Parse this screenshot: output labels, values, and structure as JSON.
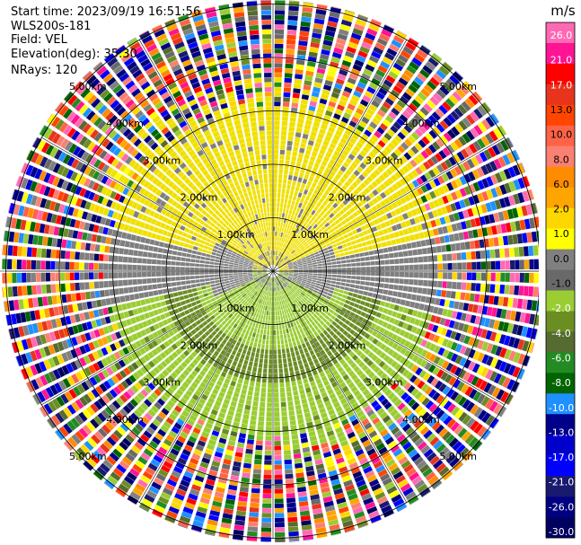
{
  "header": {
    "start_time": "Start time: 2023/09/19 16:51:56",
    "instrument": "WLS200s-181",
    "field": "Field: VEL",
    "elevation": "Elevation(deg): 35.30",
    "nrays": "NRays: 120"
  },
  "colorbar": {
    "unit": "m/s",
    "ticks": [
      "26.0",
      "21.0",
      "17.0",
      "13.0",
      "10.0",
      "8.0",
      "6.0",
      "2.0",
      "1.0",
      "0.0",
      "-1.0",
      "-2.0",
      "-4.0",
      "-6.0",
      "-8.0",
      "-10.0",
      "-13.0",
      "-17.0",
      "-21.0",
      "-26.0",
      "-30.0"
    ],
    "colors": [
      "#ff69b4",
      "#ff1493",
      "#ff0000",
      "#e8341c",
      "#ff4500",
      "#ff6347",
      "#fa8072",
      "#ff8c00",
      "#ffa500",
      "#ffd700",
      "#ffff00",
      "#808080",
      "#696969",
      "#9acd32",
      "#6b8e23",
      "#556b2f",
      "#228b22",
      "#006400",
      "#1e90ff",
      "#00008b",
      "#0000cd",
      "#0000ff",
      "#191970",
      "#000080",
      "#000060"
    ]
  },
  "ring_labels": [
    "1.00km",
    "2.00km",
    "3.00km",
    "4.00km",
    "5.00km"
  ],
  "scan": {
    "rays": 120,
    "range_rings_km": [
      1,
      2,
      3,
      4,
      5
    ],
    "field_colors": {
      "gray": "#7f7f7f",
      "yellow": "#f0e000",
      "olive_light": "#9acd32",
      "olive": "#6b8e23"
    }
  }
}
